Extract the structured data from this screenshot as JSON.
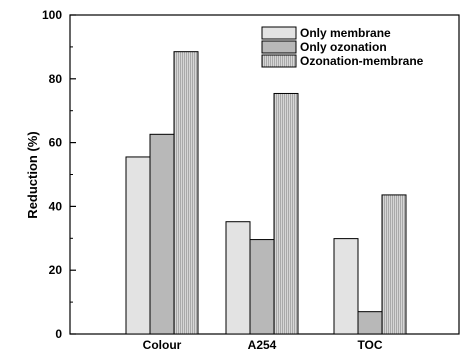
{
  "chart_data": {
    "type": "bar",
    "categories": [
      "Colour",
      "A254",
      "TOC"
    ],
    "series": [
      {
        "name": "Only membrane",
        "values": [
          55.5,
          35.2,
          29.9
        ],
        "color": "#e3e3e3"
      },
      {
        "name": "Only ozonation",
        "values": [
          62.6,
          29.6,
          7.0
        ],
        "color": "#b8b8b8"
      },
      {
        "name": "Ozonation-membrane",
        "values": [
          88.5,
          75.4,
          43.6
        ],
        "color": "#c9c9c9",
        "pattern": "vertical-lines"
      }
    ],
    "ylabel": "Reduction (%)",
    "xlabel": "",
    "ylim": [
      0,
      100
    ],
    "yticks": [
      "0",
      "20",
      "40",
      "60",
      "80",
      "100"
    ],
    "grid": false,
    "legend_position": "top-right"
  }
}
